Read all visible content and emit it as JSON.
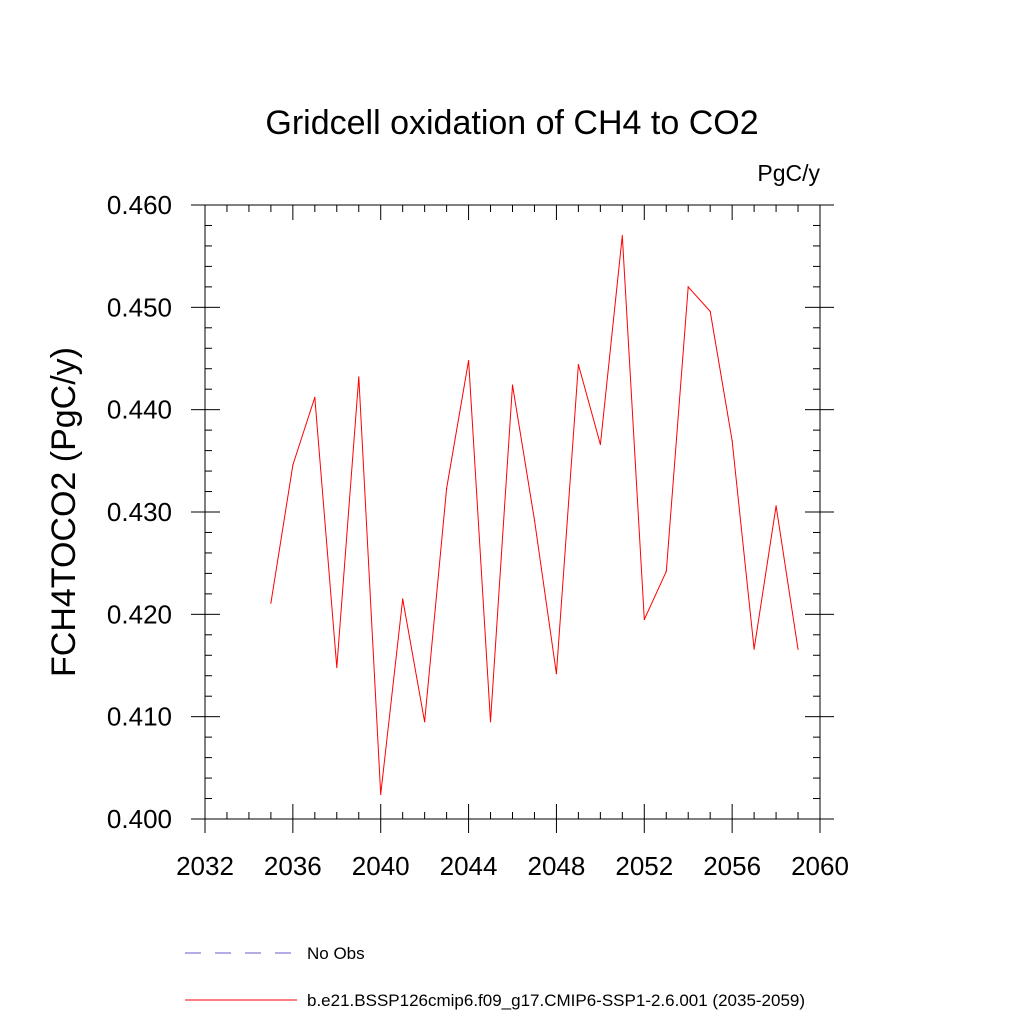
{
  "chart_data": {
    "type": "line",
    "title": "Gridcell oxidation of CH4 to CO2",
    "units": "PgC/y",
    "xlabel": "",
    "ylabel": "FCH4TOCO2  (PgC/y)",
    "xlim": [
      2032,
      2060
    ],
    "ylim": [
      0.4,
      0.46
    ],
    "xticks": [
      "2032",
      "2036",
      "2040",
      "2044",
      "2048",
      "2052",
      "2056",
      "2060"
    ],
    "yticks": [
      "0.400",
      "0.410",
      "0.420",
      "0.430",
      "0.440",
      "0.450",
      "0.460"
    ],
    "grid": false,
    "legend_position": "bottom",
    "series": [
      {
        "name": "b.e21.BSSP126cmip6.f09_g17.CMIP6-SSP1-2.6.001 (2035-2059)",
        "color": "#ff0000",
        "style": "solid",
        "x": [
          2035,
          2036,
          2037,
          2038,
          2039,
          2040,
          2041,
          2042,
          2043,
          2044,
          2045,
          2046,
          2047,
          2048,
          2049,
          2050,
          2051,
          2052,
          2053,
          2054,
          2055,
          2056,
          2057,
          2058,
          2059
        ],
        "values": [
          0.4211,
          0.4346,
          0.4412,
          0.4148,
          0.4432,
          0.4024,
          0.4215,
          0.4095,
          0.4323,
          0.4448,
          0.4095,
          0.4424,
          0.4292,
          0.4142,
          0.4444,
          0.4366,
          0.457,
          0.4195,
          0.4242,
          0.452,
          0.4496,
          0.437,
          0.4166,
          0.4306,
          0.4166
        ]
      }
    ],
    "legend": [
      {
        "label": "No Obs",
        "color": "#6a5acd",
        "style": "dashed"
      },
      {
        "label": "b.e21.BSSP126cmip6.f09_g17.CMIP6-SSP1-2.6.001 (2035-2059)",
        "color": "#ff0000",
        "style": "solid"
      }
    ]
  }
}
